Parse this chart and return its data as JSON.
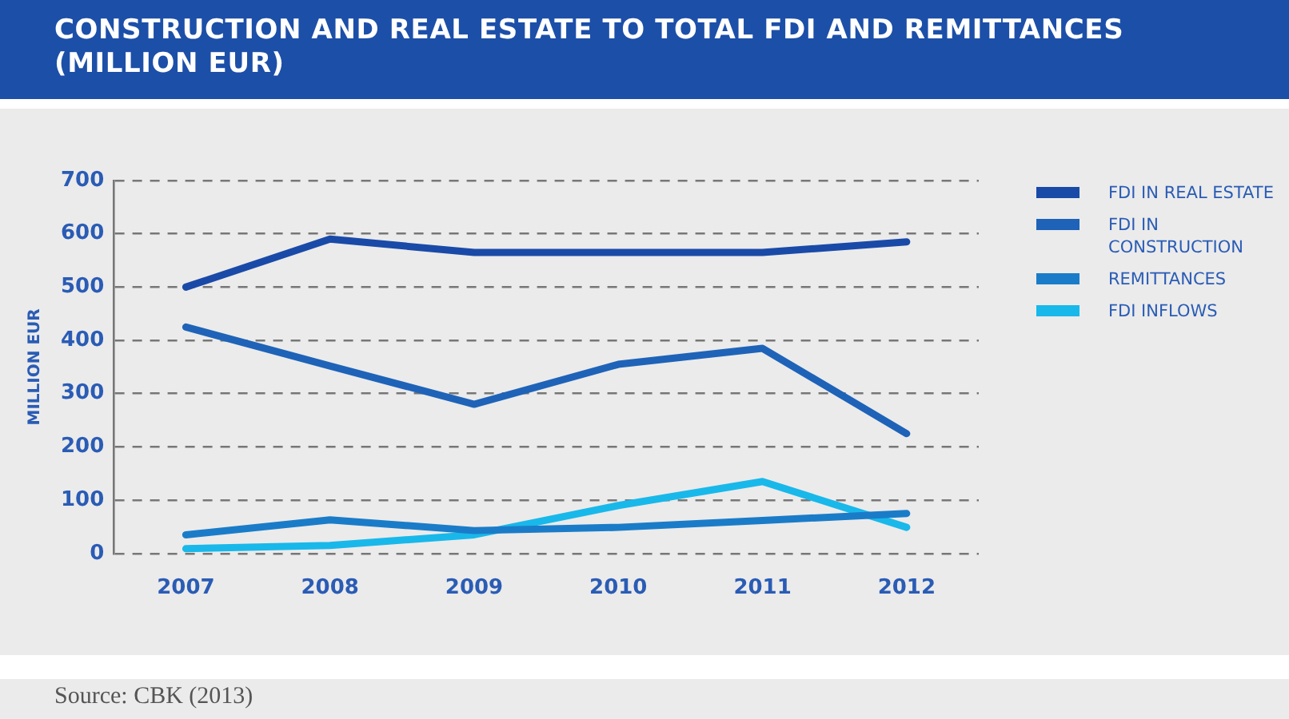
{
  "chart_data": {
    "type": "line",
    "title": "CONSTRUCTION AND REAL ESTATE TO TOTAL FDI AND REMITTANCES (MILLION EUR)",
    "ylabel": "MILLION EUR",
    "categories": [
      "2007",
      "2008",
      "2009",
      "2010",
      "2011",
      "2012"
    ],
    "series": [
      {
        "name": "FDI IN REAL ESTATE",
        "color": "#1a4aa8",
        "values": [
          500,
          590,
          565,
          565,
          565,
          585
        ]
      },
      {
        "name": "FDI IN CONSTRUCTION",
        "color": "#1e63b8",
        "values": [
          425,
          352,
          280,
          355,
          385,
          225
        ]
      },
      {
        "name": "REMITTANCES",
        "color": "#1a7cc8",
        "values": [
          35,
          63,
          43,
          49,
          62,
          75
        ]
      },
      {
        "name": "FDI INFLOWS",
        "color": "#19b8ea",
        "values": [
          9,
          15,
          35,
          90,
          135,
          49
        ]
      }
    ],
    "ylim": [
      0,
      700
    ],
    "yticks": [
      0,
      100,
      200,
      300,
      400,
      500,
      600,
      700
    ],
    "grid": "y",
    "legend": "right",
    "marker": "none",
    "line_style": "solid",
    "annotations": [
      "Source: CBK (2013)"
    ]
  }
}
